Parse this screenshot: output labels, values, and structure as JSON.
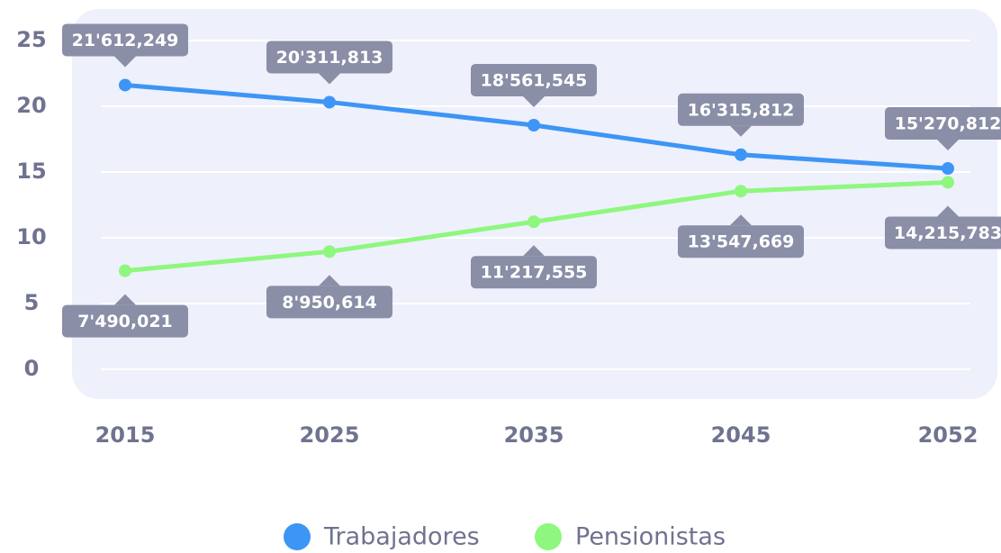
{
  "chart_data": {
    "type": "line",
    "categories": [
      "2015",
      "2025",
      "2035",
      "2045",
      "2052"
    ],
    "series": [
      {
        "name": "Trabajadores",
        "color": "#3d95f5",
        "values": [
          21.612249,
          20.311813,
          18.561545,
          16.315812,
          15.270812
        ],
        "value_labels": [
          "21'612,249",
          "20'311,813",
          "18'561,545",
          "16'315,812",
          "15'270,812"
        ]
      },
      {
        "name": "Pensionistas",
        "color": "#8ef77e",
        "values": [
          7.490021,
          8.950614,
          11.217555,
          13.547669,
          14.215783
        ],
        "value_labels": [
          "7'490,021",
          "8'950,614",
          "11'217,555",
          "13'547,669",
          "14,215,783"
        ]
      }
    ],
    "ylim": [
      0,
      25
    ],
    "yticks": [
      0,
      5,
      10,
      15,
      20,
      25
    ],
    "grid": true,
    "legend": "bottom"
  }
}
